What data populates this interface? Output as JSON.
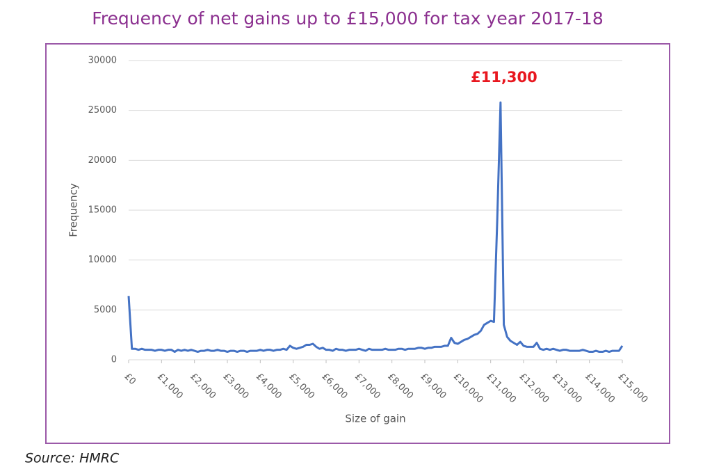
{
  "chart_data": {
    "type": "line",
    "title": "Frequency of net gains up to £15,000 for tax year 2017-18",
    "x_label": "Size of gain",
    "y_label": "Frequency",
    "source": "Source: HMRC",
    "annotations": [
      {
        "text": "£11,300",
        "x": 11300
      }
    ],
    "x": [
      0,
      100,
      200,
      300,
      400,
      500,
      600,
      700,
      800,
      900,
      1000,
      1100,
      1200,
      1300,
      1400,
      1500,
      1600,
      1700,
      1800,
      1900,
      2000,
      2100,
      2200,
      2300,
      2400,
      2500,
      2600,
      2700,
      2800,
      2900,
      3000,
      3100,
      3200,
      3300,
      3400,
      3500,
      3600,
      3700,
      3800,
      3900,
      4000,
      4100,
      4200,
      4300,
      4400,
      4500,
      4600,
      4700,
      4800,
      4900,
      5000,
      5100,
      5200,
      5300,
      5400,
      5500,
      5600,
      5700,
      5800,
      5900,
      6000,
      6100,
      6200,
      6300,
      6400,
      6500,
      6600,
      6700,
      6800,
      6900,
      7000,
      7100,
      7200,
      7300,
      7400,
      7500,
      7600,
      7700,
      7800,
      7900,
      8000,
      8100,
      8200,
      8300,
      8400,
      8500,
      8600,
      8700,
      8800,
      8900,
      9000,
      9100,
      9200,
      9300,
      9400,
      9500,
      9600,
      9700,
      9800,
      9900,
      10000,
      10100,
      10200,
      10300,
      10400,
      10500,
      10600,
      10700,
      10800,
      10900,
      11000,
      11100,
      11200,
      11300,
      11400,
      11500,
      11600,
      11700,
      11800,
      11900,
      12000,
      12100,
      12200,
      12300,
      12400,
      12500,
      12600,
      12700,
      12800,
      12900,
      13000,
      13100,
      13200,
      13300,
      13400,
      13500,
      13600,
      13700,
      13800,
      13900,
      14000,
      14100,
      14200,
      14300,
      14400,
      14500,
      14600,
      14700,
      14800,
      14900,
      15000
    ],
    "series": [
      {
        "name": "Frequency",
        "color": "#4472c4",
        "values": [
          6400,
          1100,
          1100,
          1000,
          1100,
          1000,
          1000,
          1000,
          900,
          1000,
          1000,
          900,
          1000,
          1000,
          800,
          1000,
          900,
          1000,
          900,
          1000,
          900,
          800,
          900,
          900,
          1000,
          900,
          900,
          1000,
          900,
          900,
          800,
          900,
          900,
          800,
          900,
          900,
          800,
          900,
          900,
          900,
          1000,
          900,
          1000,
          1000,
          900,
          1000,
          1000,
          1100,
          1000,
          1400,
          1200,
          1100,
          1200,
          1300,
          1500,
          1500,
          1600,
          1300,
          1100,
          1200,
          1000,
          1000,
          900,
          1100,
          1000,
          1000,
          900,
          1000,
          1000,
          1000,
          1100,
          1000,
          900,
          1100,
          1000,
          1000,
          1000,
          1000,
          1100,
          1000,
          1000,
          1000,
          1100,
          1100,
          1000,
          1100,
          1100,
          1100,
          1200,
          1200,
          1100,
          1200,
          1200,
          1300,
          1300,
          1300,
          1400,
          1400,
          2200,
          1700,
          1600,
          1800,
          2000,
          2100,
          2300,
          2500,
          2600,
          2900,
          3500,
          3700,
          3900,
          3800,
          14000,
          25800,
          3500,
          2300,
          1900,
          1700,
          1500,
          1800,
          1400,
          1300,
          1300,
          1300,
          1700,
          1100,
          1000,
          1100,
          1000,
          1100,
          1000,
          900,
          1000,
          1000,
          900,
          900,
          900,
          900,
          1000,
          900,
          800,
          800,
          900,
          800,
          800,
          900,
          800,
          900,
          900,
          900,
          1400
        ]
      }
    ],
    "xlim": [
      0,
      15000
    ],
    "xticks": [
      {
        "value": 0,
        "label": "£0"
      },
      {
        "value": 1000,
        "label": "£1,000"
      },
      {
        "value": 2000,
        "label": "£2,000"
      },
      {
        "value": 3000,
        "label": "£3,000"
      },
      {
        "value": 4000,
        "label": "£4,000"
      },
      {
        "value": 5000,
        "label": "£5,000"
      },
      {
        "value": 6000,
        "label": "£6,000"
      },
      {
        "value": 7000,
        "label": "£7,000"
      },
      {
        "value": 8000,
        "label": "£8,000"
      },
      {
        "value": 9000,
        "label": "£9,000"
      },
      {
        "value": 10000,
        "label": "£10,000"
      },
      {
        "value": 11000,
        "label": "£11,000"
      },
      {
        "value": 12000,
        "label": "£12,000"
      },
      {
        "value": 13000,
        "label": "£13,000"
      },
      {
        "value": 14000,
        "label": "£14,000"
      },
      {
        "value": 15000,
        "label": "£15,000"
      }
    ],
    "ylim": [
      0,
      30000
    ],
    "yticks": [
      0,
      5000,
      10000,
      15000,
      20000,
      25000,
      30000
    ],
    "grid": true
  }
}
